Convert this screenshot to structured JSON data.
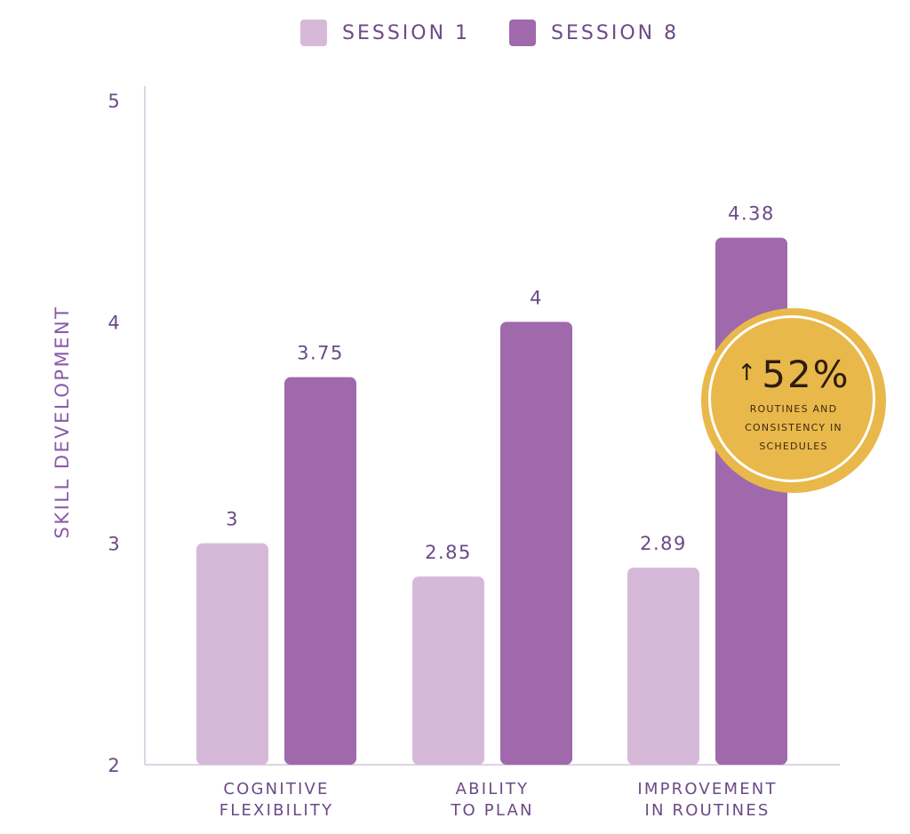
{
  "legend": [
    {
      "label": "SESSION 1",
      "color": "#d6b9d9"
    },
    {
      "label": "SESSION 8",
      "color": "#a069ac"
    }
  ],
  "callout": {
    "icon": "arrow-up-icon",
    "value": "52%",
    "text": "ROUTINES AND CONSISTENCY IN SCHEDULES"
  },
  "chart_data": {
    "type": "bar",
    "ylabel": "SKILL DEVELOPMENT",
    "xlabel": "",
    "ylim": [
      2,
      5
    ],
    "yticks": [
      2,
      3,
      4,
      5
    ],
    "grid": false,
    "legend_position": "top",
    "categories": [
      [
        "COGNITIVE",
        "FLEXIBILITY"
      ],
      [
        "ABILITY",
        "TO PLAN"
      ],
      [
        "IMPROVEMENT",
        "IN ROUTINES"
      ]
    ],
    "series": [
      {
        "name": "SESSION 1",
        "color": "#d6b9d9",
        "values": [
          3,
          2.85,
          2.89
        ],
        "labels": [
          "3",
          "2.85",
          "2.89"
        ]
      },
      {
        "name": "SESSION 8",
        "color": "#a069ac",
        "values": [
          3.75,
          4,
          4.38
        ],
        "labels": [
          "3.75",
          "4",
          "4.38"
        ]
      }
    ]
  }
}
